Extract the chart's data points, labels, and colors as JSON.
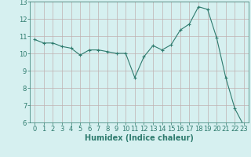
{
  "x": [
    0,
    1,
    2,
    3,
    4,
    5,
    6,
    7,
    8,
    9,
    10,
    11,
    12,
    13,
    14,
    15,
    16,
    17,
    18,
    19,
    20,
    21,
    22,
    23
  ],
  "y": [
    10.8,
    10.6,
    10.6,
    10.4,
    10.3,
    9.9,
    10.2,
    10.2,
    10.1,
    10.0,
    10.0,
    8.6,
    9.8,
    10.45,
    10.2,
    10.5,
    11.35,
    11.7,
    12.7,
    12.55,
    10.9,
    8.6,
    6.8,
    5.8
  ],
  "line_color": "#2e7b6e",
  "marker": "+",
  "marker_size": 3,
  "bg_color": "#d6f0f0",
  "grid_color": "#c0b0b0",
  "xlabel": "Humidex (Indice chaleur)",
  "xlim": [
    -0.5,
    23.5
  ],
  "ylim": [
    6,
    13
  ],
  "yticks": [
    6,
    7,
    8,
    9,
    10,
    11,
    12,
    13
  ],
  "xticks": [
    0,
    1,
    2,
    3,
    4,
    5,
    6,
    7,
    8,
    9,
    10,
    11,
    12,
    13,
    14,
    15,
    16,
    17,
    18,
    19,
    20,
    21,
    22,
    23
  ],
  "font_size_label": 7,
  "font_size_tick": 6
}
